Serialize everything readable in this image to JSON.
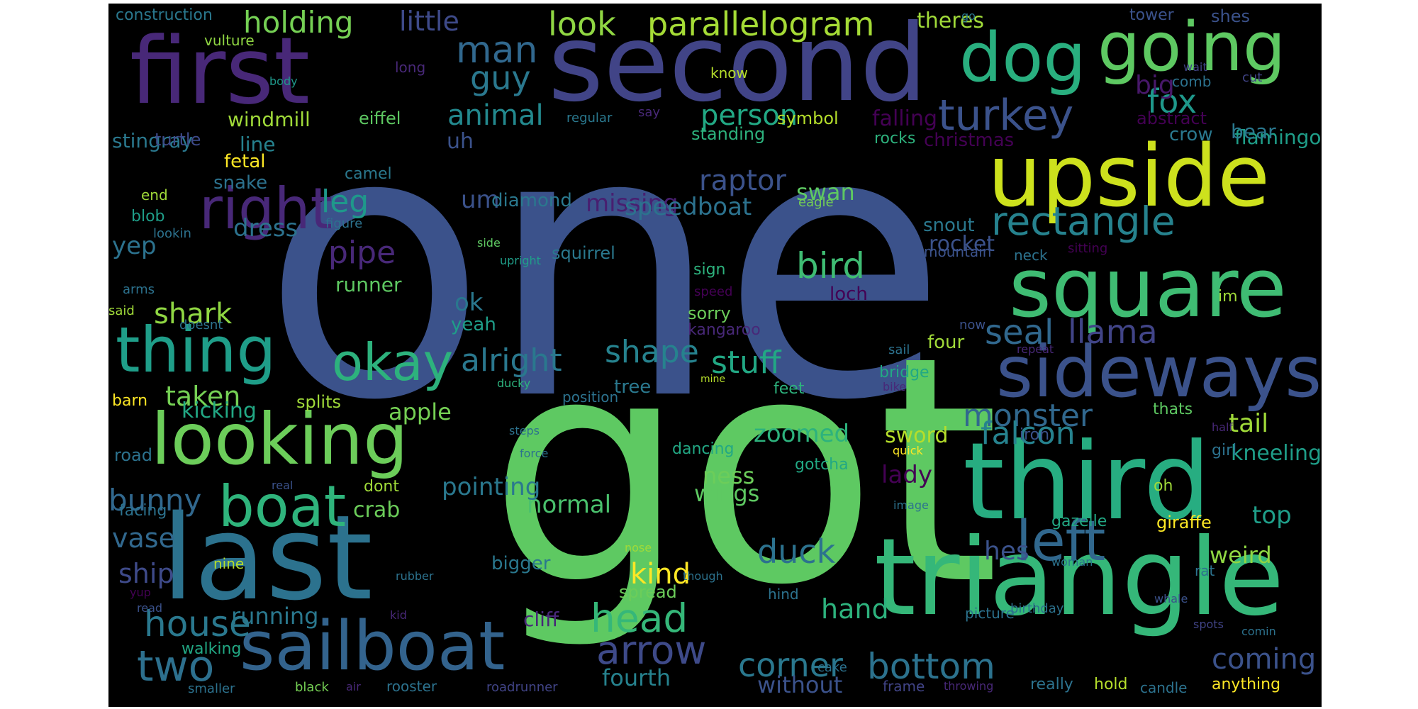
{
  "words": [
    {
      "text": "one",
      "color": "#3b528b"
    },
    {
      "text": "got",
      "color": "#5ec962"
    },
    {
      "text": "second",
      "color": "#414487"
    },
    {
      "text": "first",
      "color": "#482878"
    },
    {
      "text": "last",
      "color": "#2c728e"
    },
    {
      "text": "triangle",
      "color": "#35b779"
    },
    {
      "text": "third",
      "color": "#27ad81"
    },
    {
      "text": "upside",
      "color": "#cde11d"
    },
    {
      "text": "square",
      "color": "#3fbc73"
    },
    {
      "text": "sideways",
      "color": "#3b528b"
    },
    {
      "text": "looking",
      "color": "#6ccd5a"
    },
    {
      "text": "sailboat",
      "color": "#33638d"
    },
    {
      "text": "dog",
      "color": "#29af7f"
    },
    {
      "text": "going",
      "color": "#5ec962"
    },
    {
      "text": "thing",
      "color": "#1f9e89"
    },
    {
      "text": "boat",
      "color": "#2fb47c"
    },
    {
      "text": "right",
      "color": "#482878"
    },
    {
      "text": "okay",
      "color": "#2db27d"
    },
    {
      "text": "left",
      "color": "#31688e"
    },
    {
      "text": "rectangle",
      "color": "#26828e"
    },
    {
      "text": "two",
      "color": "#2d708e"
    },
    {
      "text": "turkey",
      "color": "#3b528b"
    },
    {
      "text": "arrow",
      "color": "#3e4a89"
    },
    {
      "text": "head",
      "color": "#35b779"
    },
    {
      "text": "house",
      "color": "#2a788e"
    },
    {
      "text": "bottom",
      "color": "#2c728e"
    },
    {
      "text": "corner",
      "color": "#2a788e"
    },
    {
      "text": "parallelogram",
      "color": "#a5db36"
    },
    {
      "text": "holding",
      "color": "#75d054"
    },
    {
      "text": "look",
      "color": "#90d743"
    },
    {
      "text": "man",
      "color": "#31688e"
    },
    {
      "text": "guy",
      "color": "#2a788e"
    },
    {
      "text": "fox",
      "color": "#1f988b"
    },
    {
      "text": "big",
      "color": "#48186a"
    },
    {
      "text": "little",
      "color": "#3e4a89"
    },
    {
      "text": "animal",
      "color": "#23898e"
    },
    {
      "text": "person",
      "color": "#22a884"
    },
    {
      "text": "bird",
      "color": "#3fbc73"
    },
    {
      "text": "seal",
      "color": "#31688e"
    },
    {
      "text": "llama",
      "color": "#414487"
    },
    {
      "text": "shape",
      "color": "#26828e"
    },
    {
      "text": "alright",
      "color": "#2a788e"
    },
    {
      "text": "stuff",
      "color": "#22a884"
    },
    {
      "text": "monster",
      "color": "#31688e"
    },
    {
      "text": "falcon",
      "color": "#26828e"
    },
    {
      "text": "duck",
      "color": "#2c728e"
    },
    {
      "text": "pipe",
      "color": "#482878"
    },
    {
      "text": "leg",
      "color": "#1f988b"
    },
    {
      "text": "kind",
      "color": "#fde725"
    },
    {
      "text": "normal",
      "color": "#4ac16d"
    },
    {
      "text": "bunny",
      "color": "#31688e"
    },
    {
      "text": "shark",
      "color": "#90d743"
    },
    {
      "text": "taken",
      "color": "#75d054"
    },
    {
      "text": "dress",
      "color": "#2c728e"
    },
    {
      "text": "raptor",
      "color": "#3b528b"
    },
    {
      "text": "missing",
      "color": "#481f70"
    },
    {
      "text": "speedboat",
      "color": "#2c728e"
    },
    {
      "text": "zoomed",
      "color": "#2db27d"
    },
    {
      "text": "pointing",
      "color": "#2a788e"
    },
    {
      "text": "coming",
      "color": "#3b528b"
    },
    {
      "text": "fourth",
      "color": "#26828e"
    },
    {
      "text": "without",
      "color": "#3b528b"
    },
    {
      "text": "running",
      "color": "#2a788e"
    },
    {
      "text": "hand",
      "color": "#2db27d"
    },
    {
      "text": "vase",
      "color": "#31688e"
    },
    {
      "text": "ship",
      "color": "#3e4a89"
    },
    {
      "text": "tail",
      "color": "#a0da39"
    },
    {
      "text": "top",
      "color": "#1f9e89"
    },
    {
      "text": "lady",
      "color": "#440154"
    },
    {
      "text": "apple",
      "color": "#75d054"
    },
    {
      "text": "kicking",
      "color": "#22a884"
    },
    {
      "text": "yep",
      "color": "#2c728e"
    },
    {
      "text": "um",
      "color": "#3b528b"
    },
    {
      "text": "uh",
      "color": "#3b528b"
    },
    {
      "text": "ok",
      "color": "#2a788e"
    },
    {
      "text": "diamond",
      "color": "#2a788e"
    },
    {
      "text": "rocket",
      "color": "#3b528b"
    },
    {
      "text": "flamingo",
      "color": "#1f9e89"
    },
    {
      "text": "kneeling",
      "color": "#1f9e89"
    },
    {
      "text": "weird",
      "color": "#90d743"
    },
    {
      "text": "hes",
      "color": "#3b528b"
    },
    {
      "text": "ness",
      "color": "#6ccd5a"
    },
    {
      "text": "wings",
      "color": "#5ec962"
    },
    {
      "text": "sword",
      "color": "#b5de2b"
    },
    {
      "text": "crab",
      "color": "#6ccd5a"
    },
    {
      "text": "swan",
      "color": "#5ec962"
    },
    {
      "text": "windmill",
      "color": "#a0da39"
    },
    {
      "text": "eiffel",
      "color": "#5ec962"
    },
    {
      "text": "line",
      "color": "#26828e"
    },
    {
      "text": "stingray",
      "color": "#2a788e"
    },
    {
      "text": "turtle",
      "color": "#3e4a89"
    },
    {
      "text": "snake",
      "color": "#2c728e"
    },
    {
      "text": "fetal",
      "color": "#fde725"
    },
    {
      "text": "blob",
      "color": "#1f9e89"
    },
    {
      "text": "end",
      "color": "#a0da39"
    },
    {
      "text": "theres",
      "color": "#a0da39"
    },
    {
      "text": "falling",
      "color": "#440154"
    },
    {
      "text": "christmas",
      "color": "#440154"
    },
    {
      "text": "crow",
      "color": "#2a788e"
    },
    {
      "text": "bear",
      "color": "#2a788e"
    },
    {
      "text": "abstract",
      "color": "#440154"
    },
    {
      "text": "symbol",
      "color": "#b5de2b"
    },
    {
      "text": "standing",
      "color": "#2db27d"
    },
    {
      "text": "rocks",
      "color": "#2db27d"
    },
    {
      "text": "tower",
      "color": "#3b528b"
    },
    {
      "text": "shes",
      "color": "#3b528b"
    },
    {
      "text": "go",
      "color": "#2a788e"
    },
    {
      "text": "construction",
      "color": "#2a788e"
    },
    {
      "text": "vulture",
      "color": "#90d743"
    },
    {
      "text": "long",
      "color": "#482878"
    },
    {
      "text": "body",
      "color": "#1f988b"
    },
    {
      "text": "know",
      "color": "#b5de2b"
    },
    {
      "text": "comb",
      "color": "#2c728e"
    },
    {
      "text": "cut",
      "color": "#414487"
    },
    {
      "text": "wait",
      "color": "#414487"
    },
    {
      "text": "regular",
      "color": "#2a788e"
    },
    {
      "text": "say",
      "color": "#482878"
    },
    {
      "text": "camel",
      "color": "#2a788e"
    },
    {
      "text": "eagle",
      "color": "#75d054"
    },
    {
      "text": "figure",
      "color": "#2c728e"
    },
    {
      "text": "lookin",
      "color": "#2c728e"
    },
    {
      "text": "arms",
      "color": "#2c728e"
    },
    {
      "text": "said",
      "color": "#a0da39"
    },
    {
      "text": "doesnt",
      "color": "#2c728e"
    },
    {
      "text": "runner",
      "color": "#5ec962"
    },
    {
      "text": "yeah",
      "color": "#1f9e89"
    },
    {
      "text": "sorry",
      "color": "#6ccd5a"
    },
    {
      "text": "kangaroo",
      "color": "#482878"
    },
    {
      "text": "squirrel",
      "color": "#2a788e"
    },
    {
      "text": "side",
      "color": "#5ec962"
    },
    {
      "text": "upright",
      "color": "#1f9e89"
    },
    {
      "text": "sign",
      "color": "#2db27d"
    },
    {
      "text": "speed",
      "color": "#440154"
    },
    {
      "text": "loch",
      "color": "#440154"
    },
    {
      "text": "snout",
      "color": "#2a788e"
    },
    {
      "text": "neck",
      "color": "#2c728e"
    },
    {
      "text": "sitting",
      "color": "#440154"
    },
    {
      "text": "mountain",
      "color": "#3b528b"
    },
    {
      "text": "now",
      "color": "#3b528b"
    },
    {
      "text": "im",
      "color": "#a0da39"
    },
    {
      "text": "sail",
      "color": "#2c728e"
    },
    {
      "text": "repeat",
      "color": "#482878"
    },
    {
      "text": "four",
      "color": "#a0da39"
    },
    {
      "text": "bridge",
      "color": "#22a884"
    },
    {
      "text": "bike",
      "color": "#482878"
    },
    {
      "text": "feet",
      "color": "#2db27d"
    },
    {
      "text": "tree",
      "color": "#2a788e"
    },
    {
      "text": "mine",
      "color": "#b5de2b"
    },
    {
      "text": "ducky",
      "color": "#2db27d"
    },
    {
      "text": "barn",
      "color": "#fde725"
    },
    {
      "text": "splits",
      "color": "#a0da39"
    },
    {
      "text": "position",
      "color": "#2c728e"
    },
    {
      "text": "steps",
      "color": "#2c728e"
    },
    {
      "text": "dancing",
      "color": "#22a884"
    },
    {
      "text": "force",
      "color": "#2c728e"
    },
    {
      "text": "road",
      "color": "#2c728e"
    },
    {
      "text": "gotcha",
      "color": "#22a884"
    },
    {
      "text": "iron",
      "color": "#3b528b"
    },
    {
      "text": "half",
      "color": "#482878"
    },
    {
      "text": "quick",
      "color": "#fde725"
    },
    {
      "text": "thats",
      "color": "#5ec962"
    },
    {
      "text": "girl",
      "color": "#2c728e"
    },
    {
      "text": "oh",
      "color": "#a0da39"
    },
    {
      "text": "image",
      "color": "#2c728e"
    },
    {
      "text": "real",
      "color": "#3b528b"
    },
    {
      "text": "dont",
      "color": "#a0da39"
    },
    {
      "text": "facing",
      "color": "#2c728e"
    },
    {
      "text": "gazelle",
      "color": "#22a884"
    },
    {
      "text": "giraffe",
      "color": "#fde725"
    },
    {
      "text": "nine",
      "color": "#b5de2b"
    },
    {
      "text": "bigger",
      "color": "#2a788e"
    },
    {
      "text": "nose",
      "color": "#a0da39"
    },
    {
      "text": "rubber",
      "color": "#2c728e"
    },
    {
      "text": "woman",
      "color": "#2c728e"
    },
    {
      "text": "rat",
      "color": "#2c728e"
    },
    {
      "text": "whale",
      "color": "#3b528b"
    },
    {
      "text": "birthday",
      "color": "#2c728e"
    },
    {
      "text": "though",
      "color": "#2c728e"
    },
    {
      "text": "spread",
      "color": "#6ccd5a"
    },
    {
      "text": "hind",
      "color": "#2c728e"
    },
    {
      "text": "yup",
      "color": "#440154"
    },
    {
      "text": "read",
      "color": "#3b528b"
    },
    {
      "text": "kid",
      "color": "#482878"
    },
    {
      "text": "cliff",
      "color": "#482878"
    },
    {
      "text": "picture",
      "color": "#2c728e"
    },
    {
      "text": "spots",
      "color": "#414487"
    },
    {
      "text": "comin",
      "color": "#2c728e"
    },
    {
      "text": "walking",
      "color": "#22a884"
    },
    {
      "text": "cake",
      "color": "#2c728e"
    },
    {
      "text": "smaller",
      "color": "#2c728e"
    },
    {
      "text": "black",
      "color": "#75d054"
    },
    {
      "text": "air",
      "color": "#482878"
    },
    {
      "text": "rooster",
      "color": "#2c728e"
    },
    {
      "text": "roadrunner",
      "color": "#414487"
    },
    {
      "text": "frame",
      "color": "#414487"
    },
    {
      "text": "throwing",
      "color": "#482878"
    },
    {
      "text": "really",
      "color": "#2c728e"
    },
    {
      "text": "hold",
      "color": "#b5de2b"
    },
    {
      "text": "candle",
      "color": "#2c728e"
    },
    {
      "text": "anything",
      "color": "#fde725"
    }
  ]
}
